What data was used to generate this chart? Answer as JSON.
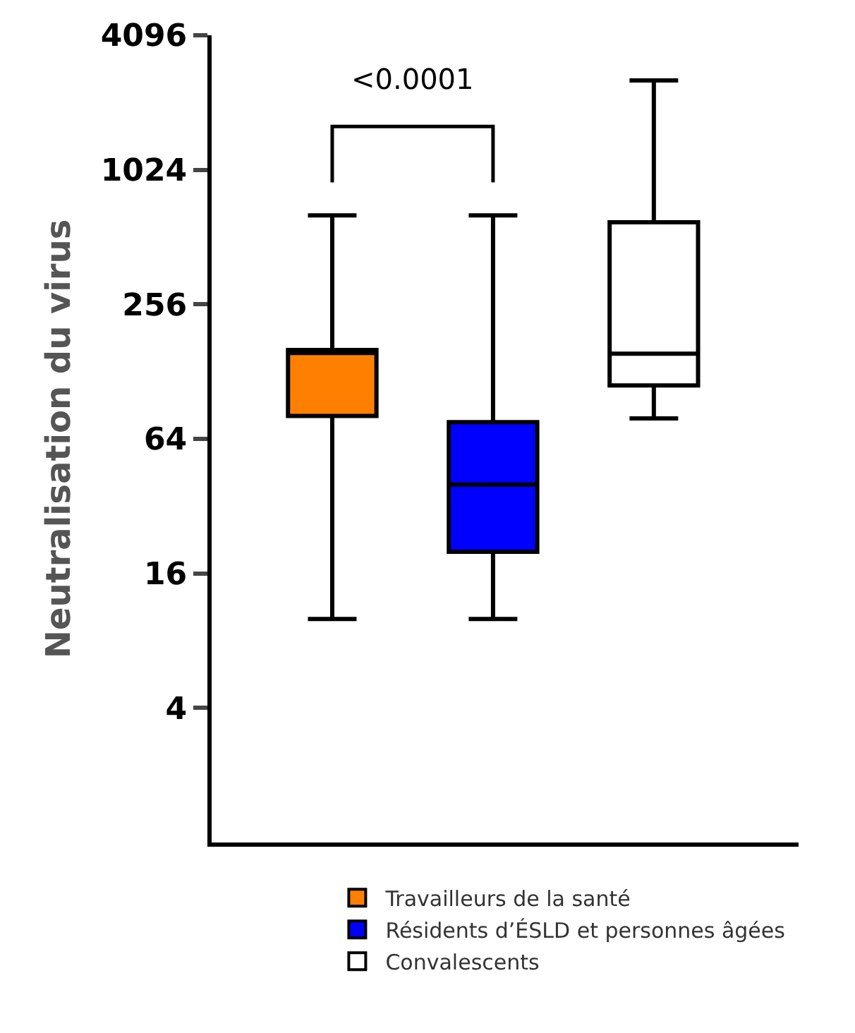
{
  "chart_data": {
    "type": "box",
    "ylabel": "Neutralisation du virus",
    "categories": [
      null,
      null,
      null
    ],
    "log": "y",
    "ylim": [
      1,
      4096
    ],
    "yticks": [
      4,
      16,
      64,
      256,
      1024,
      4096
    ],
    "legend": "bottom",
    "series": [
      {
        "name": "Travailleurs de la santé",
        "color": "#ff8000",
        "boxes": [
          {
            "low": 10,
            "q1": 81,
            "median": 155,
            "q3": 160,
            "high": 640
          },
          null,
          null
        ]
      },
      {
        "name": "Résidents d’ÉSLD et personnes âgées",
        "color": "#0000ff",
        "boxes": [
          null,
          {
            "low": 10,
            "q1": 20,
            "median": 40,
            "q3": 76,
            "high": 640
          },
          null
        ]
      },
      {
        "name": "Convalescents",
        "color": "#ffffff",
        "boxes": [
          null,
          null,
          {
            "low": 79,
            "q1": 111,
            "median": 154,
            "q3": 597,
            "high": 2570
          }
        ]
      }
    ],
    "annotations": [
      "<0.0001"
    ]
  }
}
